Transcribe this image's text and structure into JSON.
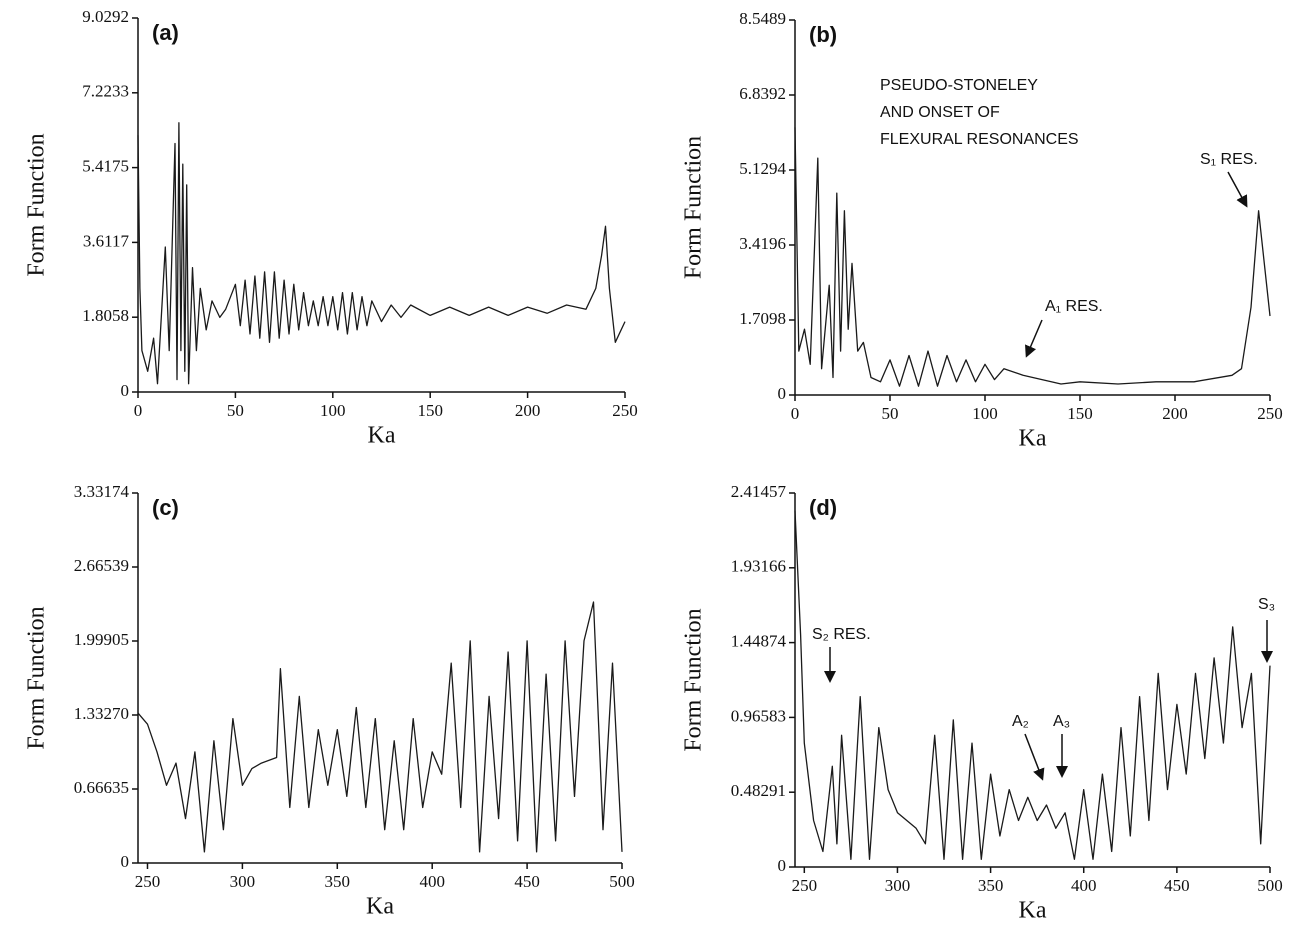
{
  "chart_data": [
    {
      "type": "line",
      "title": "(a)",
      "xlabel": "Ka",
      "ylabel": "Form Function",
      "xlim": [
        0,
        250
      ],
      "xticks": [
        0,
        50,
        100,
        150,
        200,
        250
      ],
      "ylim": [
        0,
        9.0292
      ],
      "yticks": [
        0,
        1.8058,
        3.6117,
        5.4175,
        7.2233,
        9.0292
      ],
      "color": "#1a1a1a",
      "x": [
        0,
        1,
        2,
        5,
        8,
        10,
        14,
        16,
        19,
        20,
        21,
        22,
        23,
        24,
        25,
        26,
        28,
        30,
        32,
        35,
        38,
        42,
        45,
        50,
        52.5,
        55,
        57.5,
        60,
        62.5,
        65,
        67.5,
        70,
        72.5,
        75,
        77.5,
        80,
        82.5,
        85,
        87.5,
        90,
        92.5,
        95,
        97.5,
        100,
        102.5,
        105,
        107.5,
        110,
        112.5,
        115,
        117.5,
        120,
        125,
        130,
        135,
        140,
        150,
        160,
        170,
        180,
        190,
        200,
        210,
        220,
        230,
        235,
        238,
        240,
        242,
        245,
        250
      ],
      "values": [
        6.2,
        2.5,
        1.0,
        0.5,
        1.3,
        0.2,
        3.5,
        1.0,
        6.0,
        0.3,
        6.5,
        1.0,
        5.5,
        0.5,
        5.0,
        0.2,
        3.0,
        1.0,
        2.5,
        1.5,
        2.2,
        1.8,
        2.0,
        2.6,
        1.6,
        2.7,
        1.4,
        2.8,
        1.3,
        2.9,
        1.2,
        2.9,
        1.3,
        2.7,
        1.4,
        2.6,
        1.5,
        2.4,
        1.6,
        2.2,
        1.6,
        2.3,
        1.6,
        2.3,
        1.5,
        2.4,
        1.4,
        2.4,
        1.5,
        2.3,
        1.6,
        2.2,
        1.7,
        2.1,
        1.8,
        2.1,
        1.85,
        2.05,
        1.85,
        2.05,
        1.85,
        2.05,
        1.9,
        2.1,
        2.0,
        2.5,
        3.3,
        4.0,
        2.5,
        1.2,
        1.7
      ]
    },
    {
      "type": "line",
      "title": "(b)",
      "xlabel": "Ka",
      "ylabel": "Form Function",
      "xlim": [
        0,
        250
      ],
      "xticks": [
        0,
        50,
        100,
        150,
        200,
        250
      ],
      "ylim": [
        0,
        8.5489
      ],
      "yticks": [
        0,
        1.7098,
        3.4196,
        5.1294,
        6.8392,
        8.5489
      ],
      "color": "#1a1a1a",
      "annotations": [
        "PSEUDO-STONELEY",
        "AND ONSET OF",
        "FLEXURAL RESONANCES",
        "S₁ RES.",
        "A₁ RES."
      ],
      "x": [
        0,
        2,
        5,
        8,
        12,
        14,
        18,
        20,
        22,
        24,
        26,
        28,
        30,
        33,
        36,
        40,
        45,
        50,
        55,
        60,
        65,
        70,
        75,
        80,
        85,
        90,
        95,
        100,
        105,
        110,
        120,
        130,
        140,
        150,
        170,
        190,
        210,
        230,
        235,
        240,
        244,
        247,
        250
      ],
      "values": [
        6.1,
        1.0,
        1.5,
        0.7,
        5.4,
        0.6,
        2.5,
        0.4,
        4.6,
        1.0,
        4.2,
        1.5,
        3.0,
        1.0,
        1.2,
        0.4,
        0.3,
        0.8,
        0.2,
        0.9,
        0.2,
        1.0,
        0.2,
        0.9,
        0.3,
        0.8,
        0.3,
        0.7,
        0.35,
        0.6,
        0.45,
        0.35,
        0.25,
        0.3,
        0.25,
        0.3,
        0.3,
        0.45,
        0.6,
        2.0,
        4.2,
        3.0,
        1.8
      ]
    },
    {
      "type": "line",
      "title": "(c)",
      "xlabel": "Ka",
      "ylabel": "Form Function",
      "xlim": [
        245,
        500
      ],
      "xticks": [
        250,
        300,
        350,
        400,
        450,
        500
      ],
      "ylim": [
        0,
        3.33174
      ],
      "yticks": [
        0,
        0.66635,
        {
          "value": 1.3327,
          "label": "1.33270"
        },
        1.99905,
        2.66539,
        3.33174
      ],
      "color": "#1a1a1a",
      "x": [
        245,
        250,
        255,
        260,
        265,
        270,
        275,
        280,
        285,
        290,
        295,
        300,
        305,
        310,
        318,
        320,
        325,
        330,
        335,
        340,
        345,
        350,
        355,
        360,
        365,
        370,
        375,
        380,
        385,
        390,
        395,
        400,
        405,
        410,
        415,
        420,
        425,
        430,
        435,
        440,
        445,
        450,
        455,
        460,
        465,
        470,
        475,
        480,
        485,
        490,
        495,
        500
      ],
      "values": [
        1.35,
        1.25,
        1.0,
        0.7,
        0.9,
        0.4,
        1.0,
        0.1,
        1.1,
        0.3,
        1.3,
        0.7,
        0.85,
        0.9,
        0.95,
        1.75,
        0.5,
        1.5,
        0.5,
        1.2,
        0.7,
        1.2,
        0.6,
        1.4,
        0.5,
        1.3,
        0.3,
        1.1,
        0.3,
        1.3,
        0.5,
        1.0,
        0.8,
        1.8,
        0.5,
        2.0,
        0.1,
        1.5,
        0.4,
        1.9,
        0.2,
        2.0,
        0.1,
        1.7,
        0.2,
        2.0,
        0.6,
        2.0,
        2.35,
        0.3,
        1.8,
        0.1
      ]
    },
    {
      "type": "line",
      "title": "(d)",
      "xlabel": "Ka",
      "ylabel": "Form Function",
      "xlim": [
        245,
        500
      ],
      "xticks": [
        250,
        300,
        350,
        400,
        450,
        500
      ],
      "ylim": [
        0,
        2.41457
      ],
      "yticks": [
        0,
        0.48291,
        0.96583,
        1.44874,
        1.93166,
        2.41457
      ],
      "color": "#1a1a1a",
      "annotations": [
        "S₂ RES.",
        "A₂",
        "A₃",
        "S₃"
      ],
      "x": [
        245,
        248,
        250,
        255,
        260,
        265,
        267.5,
        270,
        275,
        280,
        285,
        290,
        295,
        300,
        310,
        315,
        320,
        325,
        330,
        335,
        340,
        345,
        350,
        355,
        360,
        365,
        370,
        375,
        380,
        385,
        390,
        395,
        400,
        405,
        410,
        415,
        420,
        425,
        430,
        435,
        440,
        445,
        450,
        455,
        460,
        465,
        470,
        475,
        480,
        485,
        490,
        495,
        500
      ],
      "values": [
        2.3,
        1.5,
        0.8,
        0.3,
        0.1,
        0.65,
        0.15,
        0.85,
        0.05,
        1.1,
        0.05,
        0.9,
        0.5,
        0.35,
        0.25,
        0.15,
        0.85,
        0.05,
        0.95,
        0.05,
        0.8,
        0.05,
        0.6,
        0.2,
        0.5,
        0.3,
        0.45,
        0.3,
        0.4,
        0.25,
        0.35,
        0.05,
        0.5,
        0.05,
        0.6,
        0.1,
        0.9,
        0.2,
        1.1,
        0.3,
        1.25,
        0.5,
        1.05,
        0.6,
        1.25,
        0.7,
        1.35,
        0.8,
        1.55,
        0.9,
        1.25,
        0.15,
        1.3
      ]
    }
  ]
}
